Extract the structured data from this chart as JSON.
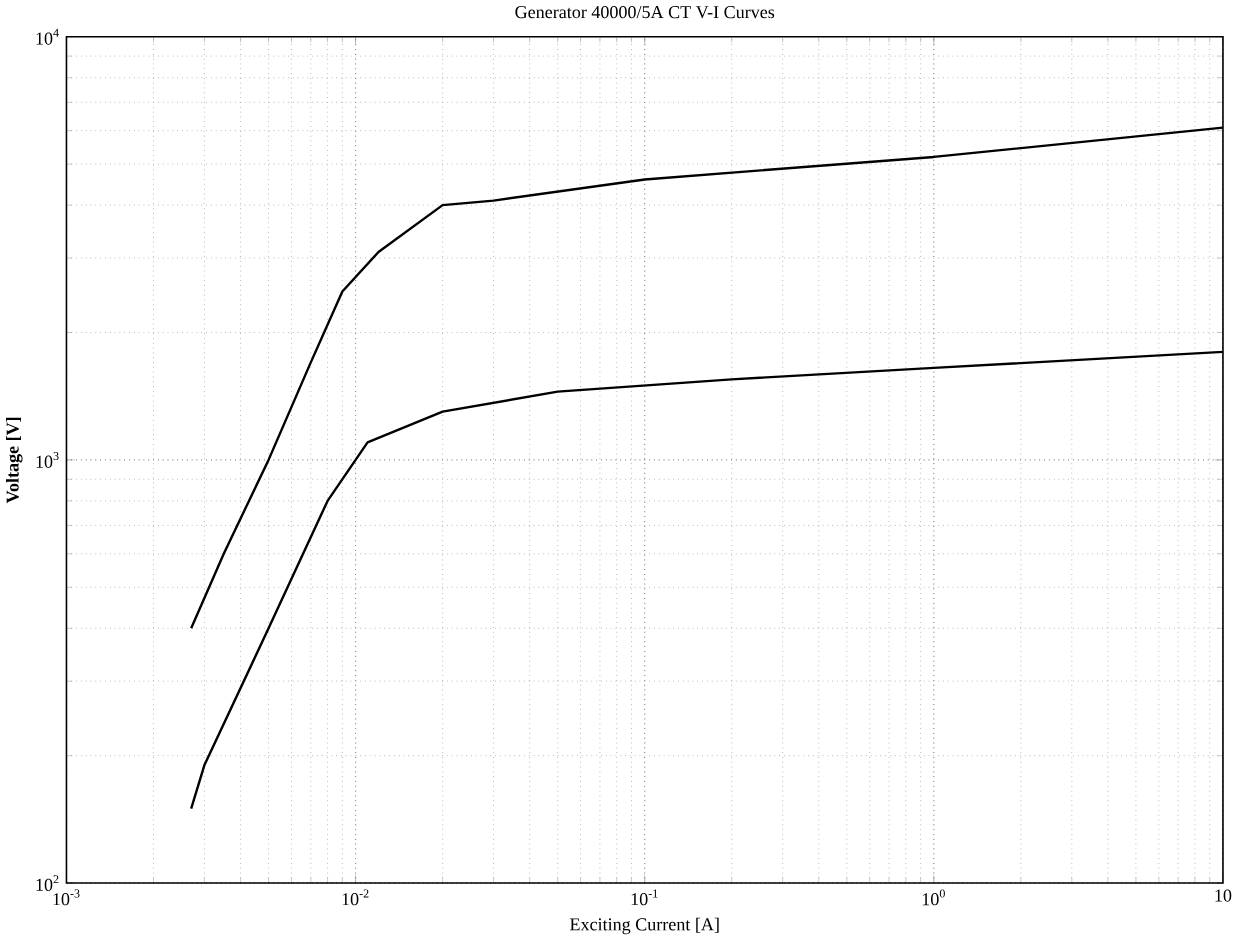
{
  "chart_data": {
    "type": "line",
    "title": "Generator 40000/5A CT V-I Curves",
    "xlabel": "Exciting Current [A]",
    "ylabel": "Voltage [V]",
    "log": "xy",
    "grid": true,
    "marker": "none",
    "line_style": "solid",
    "xlim": [
      0.001,
      10
    ],
    "ylim": [
      100,
      10000
    ],
    "xticks": [
      {
        "value": 0.001,
        "label": "10$^{-3}$"
      },
      {
        "value": 0.01,
        "label": "10$^{-2}$"
      },
      {
        "value": 0.1,
        "label": "10$^{-1}$"
      },
      {
        "value": 1,
        "label": "10$^{0}$"
      },
      {
        "value": 10,
        "label": "10"
      }
    ],
    "yticks": [
      {
        "value": 100,
        "label": "10$^{2}$"
      },
      {
        "value": 1000,
        "label": "10$^{3}$"
      },
      {
        "value": 10000,
        "label": "10$^{4}$"
      }
    ],
    "series": [
      {
        "color": "#000000",
        "x": [
          0.0027,
          0.0035,
          0.005,
          0.007,
          0.009,
          0.012,
          0.02,
          0.03,
          0.1,
          1,
          10
        ],
        "values": [
          400,
          600,
          1000,
          1700,
          2500,
          3100,
          4000,
          4100,
          4600,
          5200,
          6100
        ]
      },
      {
        "color": "#000000",
        "x": [
          0.0027,
          0.003,
          0.005,
          0.008,
          0.011,
          0.02,
          0.05,
          0.2,
          1,
          10
        ],
        "values": [
          150,
          190,
          400,
          800,
          1100,
          1300,
          1450,
          1550,
          1650,
          1800
        ]
      }
    ]
  }
}
